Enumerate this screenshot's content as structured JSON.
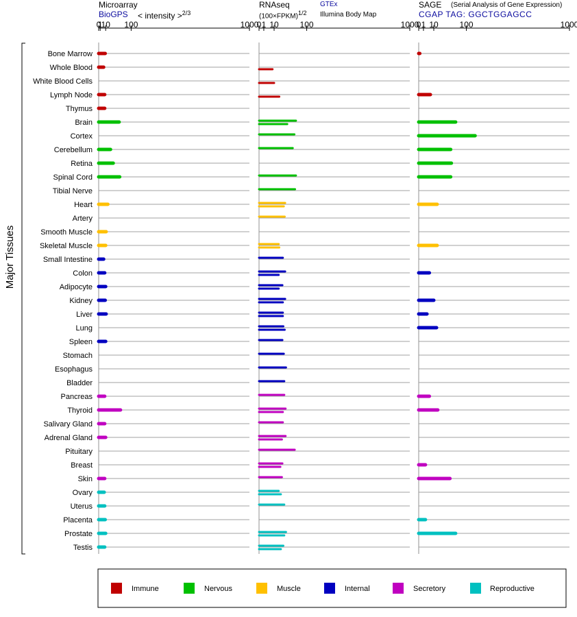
{
  "headers": {
    "microarray": {
      "title": "Microarray",
      "source": "BioGPS",
      "unit": "< intensity >",
      "exponent": "2/3"
    },
    "rnaseq": {
      "title": "RNAseq",
      "unit": "(100×FPKM)",
      "exponent": "1/2",
      "sources": [
        "GTEx",
        "Illumina Body Map"
      ]
    },
    "sage": {
      "title": "SAGE",
      "subtitle": "(Serial Analysis of Gene Expression)",
      "tag": "CGAP TAG: GGCTGGAGCC"
    }
  },
  "ylabel": "Major Tissues",
  "chart_data": {
    "type": "bar",
    "orientation": "horizontal",
    "x_ticks": [
      0,
      1,
      10,
      100,
      1000
    ],
    "xlim": [
      0,
      1000
    ],
    "categories": [
      "Bone Marrow",
      "Whole Blood",
      "White Blood Cells",
      "Lymph Node",
      "Thymus",
      "Brain",
      "Cortex",
      "Cerebellum",
      "Retina",
      "Spinal Cord",
      "Tibial Nerve",
      "Heart",
      "Artery",
      "Smooth Muscle",
      "Skeletal Muscle",
      "Small Intestine",
      "Colon",
      "Adipocyte",
      "Kidney",
      "Liver",
      "Lung",
      "Spleen",
      "Stomach",
      "Esophagus",
      "Bladder",
      "Pancreas",
      "Thyroid",
      "Salivary Gland",
      "Adrenal Gland",
      "Pituitary",
      "Breast",
      "Skin",
      "Ovary",
      "Uterus",
      "Placenta",
      "Prostate",
      "Testis"
    ],
    "groups": [
      "Immune",
      "Immune",
      "Immune",
      "Immune",
      "Immune",
      "Nervous",
      "Nervous",
      "Nervous",
      "Nervous",
      "Nervous",
      "Nervous",
      "Muscle",
      "Muscle",
      "Muscle",
      "Muscle",
      "Internal",
      "Internal",
      "Internal",
      "Internal",
      "Internal",
      "Internal",
      "Internal",
      "Internal",
      "Internal",
      "Internal",
      "Secretory",
      "Secretory",
      "Secretory",
      "Secretory",
      "Secretory",
      "Secretory",
      "Secretory",
      "Reproductive",
      "Reproductive",
      "Reproductive",
      "Reproductive",
      "Reproductive"
    ],
    "legend": [
      {
        "name": "Immune",
        "color": "#c00000"
      },
      {
        "name": "Nervous",
        "color": "#00c000"
      },
      {
        "name": "Muscle",
        "color": "#ffc000"
      },
      {
        "name": "Internal",
        "color": "#0000c0"
      },
      {
        "name": "Secretory",
        "color": "#c000c0"
      },
      {
        "name": "Reproductive",
        "color": "#00c0c0"
      }
    ],
    "legend_placement": "bottom",
    "panels": [
      {
        "key": "microarray",
        "values": [
          9,
          6,
          null,
          8,
          8,
          50,
          null,
          22,
          30,
          52,
          null,
          15,
          null,
          11,
          10,
          6,
          8,
          10,
          9,
          11,
          null,
          10,
          null,
          null,
          null,
          8,
          55,
          8,
          10,
          null,
          null,
          8,
          7,
          8,
          9,
          10,
          8
        ]
      },
      {
        "key": "rnaseq",
        "series": [
          {
            "name": "GTEx",
            "values": [
              null,
              null,
              null,
              null,
              null,
              60,
              55,
              50,
              null,
              60,
              57,
              30,
              29,
              null,
              17,
              25,
              30,
              24,
              30,
              25,
              26,
              24,
              27,
              32,
              28,
              28,
              31,
              25,
              31,
              56,
              24,
              23,
              17,
              28,
              null,
              32,
              26
            ]
          },
          {
            "name": "Illumina Body Map",
            "values": [
              null,
              8,
              10,
              18,
              null,
              35,
              null,
              null,
              null,
              null,
              null,
              27,
              null,
              null,
              18,
              null,
              17,
              17,
              25,
              25,
              29,
              null,
              null,
              null,
              null,
              null,
              25,
              null,
              23,
              null,
              20,
              null,
              21,
              null,
              null,
              28,
              21
            ]
          }
        ]
      },
      {
        "key": "sage",
        "values": [
          0.05,
          null,
          null,
          6,
          null,
          60,
          140,
          45,
          47,
          45,
          null,
          15,
          null,
          null,
          15,
          null,
          5,
          null,
          10,
          3,
          14,
          null,
          null,
          null,
          null,
          5,
          16,
          null,
          null,
          null,
          2,
          43,
          null,
          null,
          2,
          60,
          null
        ]
      }
    ]
  }
}
